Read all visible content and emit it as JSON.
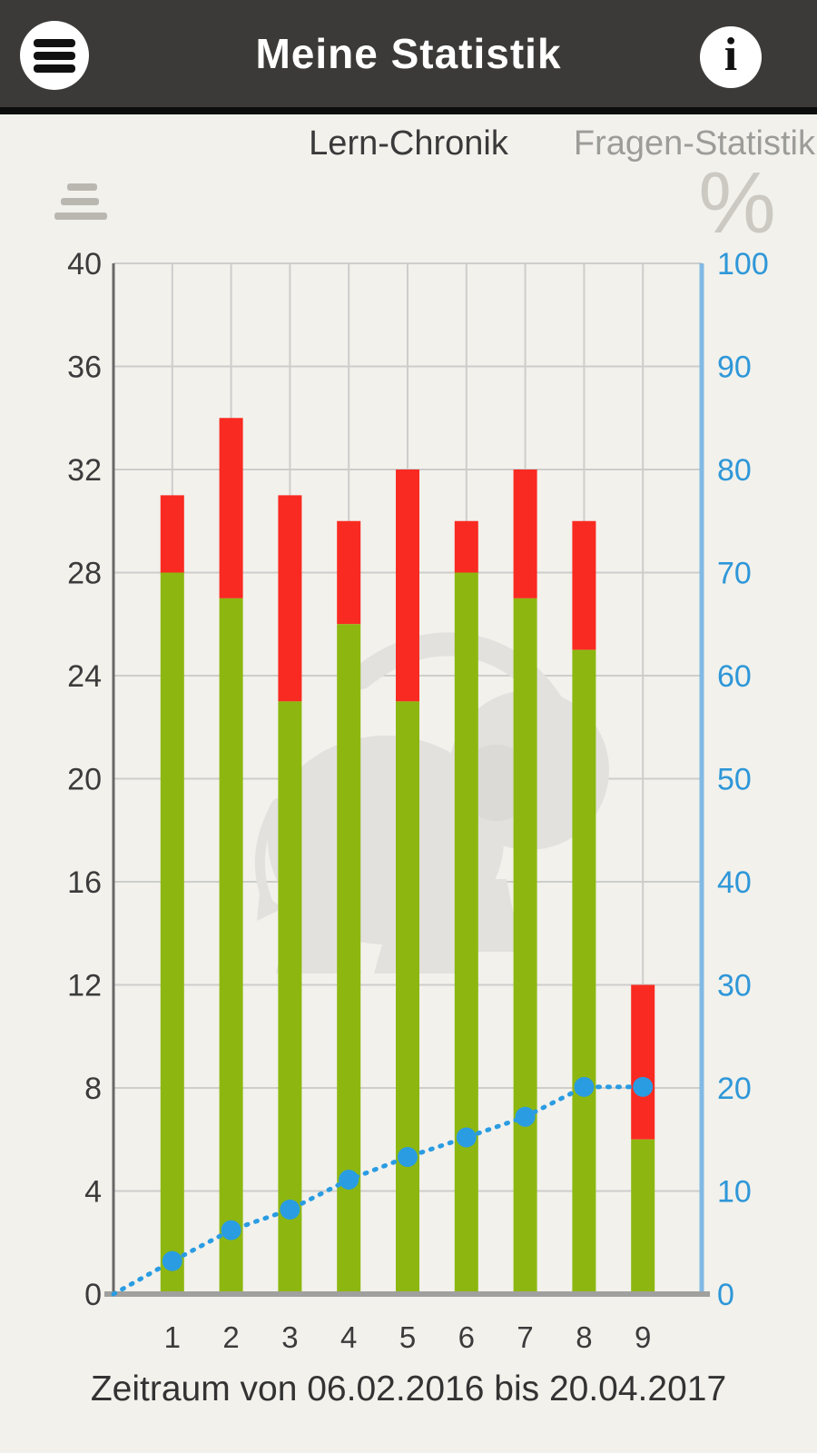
{
  "header": {
    "title": "Meine Statistik",
    "menu_icon": "hamburger-icon",
    "info_icon": "info-icon",
    "info_glyph": "i"
  },
  "tabs": [
    {
      "label": "Lern-Chronik",
      "active": true
    },
    {
      "label": "Fragen-Statistik",
      "active": false
    }
  ],
  "axis_unit_icons": {
    "left": "stacked-bars-icon",
    "right_glyph": "%"
  },
  "caption": "Zeitraum von 06.02.2016 bis 20.04.2017",
  "colors": {
    "header_bg": "#3b3a39",
    "page_bg": "#f2f1ec",
    "green": "#8db710",
    "red": "#f92a21",
    "line_blue": "#2a9ce2",
    "right_axis_blue": "#82b9e4",
    "right_label_blue": "#2e97d8",
    "grid": "#cdcdcb",
    "left_axis": "#686868",
    "x_axis": "#a0a09e",
    "dark_text": "#3b3b3b",
    "inactive_tab": "#9c9c99",
    "watermark": "#e2e1de"
  },
  "chart_data": {
    "type": "bar",
    "subtype": "stacked-bar-with-line-overlay",
    "categories": [
      "1",
      "2",
      "3",
      "4",
      "5",
      "6",
      "7",
      "8",
      "9"
    ],
    "series": [
      {
        "name": "green-bottom-segment",
        "type": "bar",
        "axis": "left",
        "values": [
          28,
          27,
          23,
          26,
          23,
          28,
          27,
          25,
          6
        ]
      },
      {
        "name": "red-top-segment",
        "type": "bar",
        "axis": "left",
        "values": [
          3,
          7,
          8,
          4,
          9,
          2,
          5,
          5,
          6
        ]
      },
      {
        "name": "blue-percent-line",
        "type": "line",
        "axis": "right",
        "x": [
          0,
          1,
          2,
          3,
          4,
          5,
          6,
          7,
          8,
          9
        ],
        "values": [
          0,
          3.2,
          6.2,
          8.2,
          11.1,
          13.3,
          15.2,
          17.2,
          20.1,
          20.1
        ]
      }
    ],
    "stacked_totals": [
      31,
      34,
      31,
      30,
      32,
      30,
      32,
      30,
      12
    ],
    "left_axis": {
      "min": 0,
      "max": 40,
      "step": 4,
      "ticks": [
        0,
        4,
        8,
        12,
        16,
        20,
        24,
        28,
        32,
        36,
        40
      ]
    },
    "right_axis": {
      "min": 0,
      "max": 100,
      "step": 10,
      "unit": "%",
      "ticks": [
        0,
        10,
        20,
        30,
        40,
        50,
        60,
        70,
        80,
        90,
        100
      ]
    },
    "grid": true,
    "legend": "none",
    "watermark": "elephant-mascot"
  }
}
